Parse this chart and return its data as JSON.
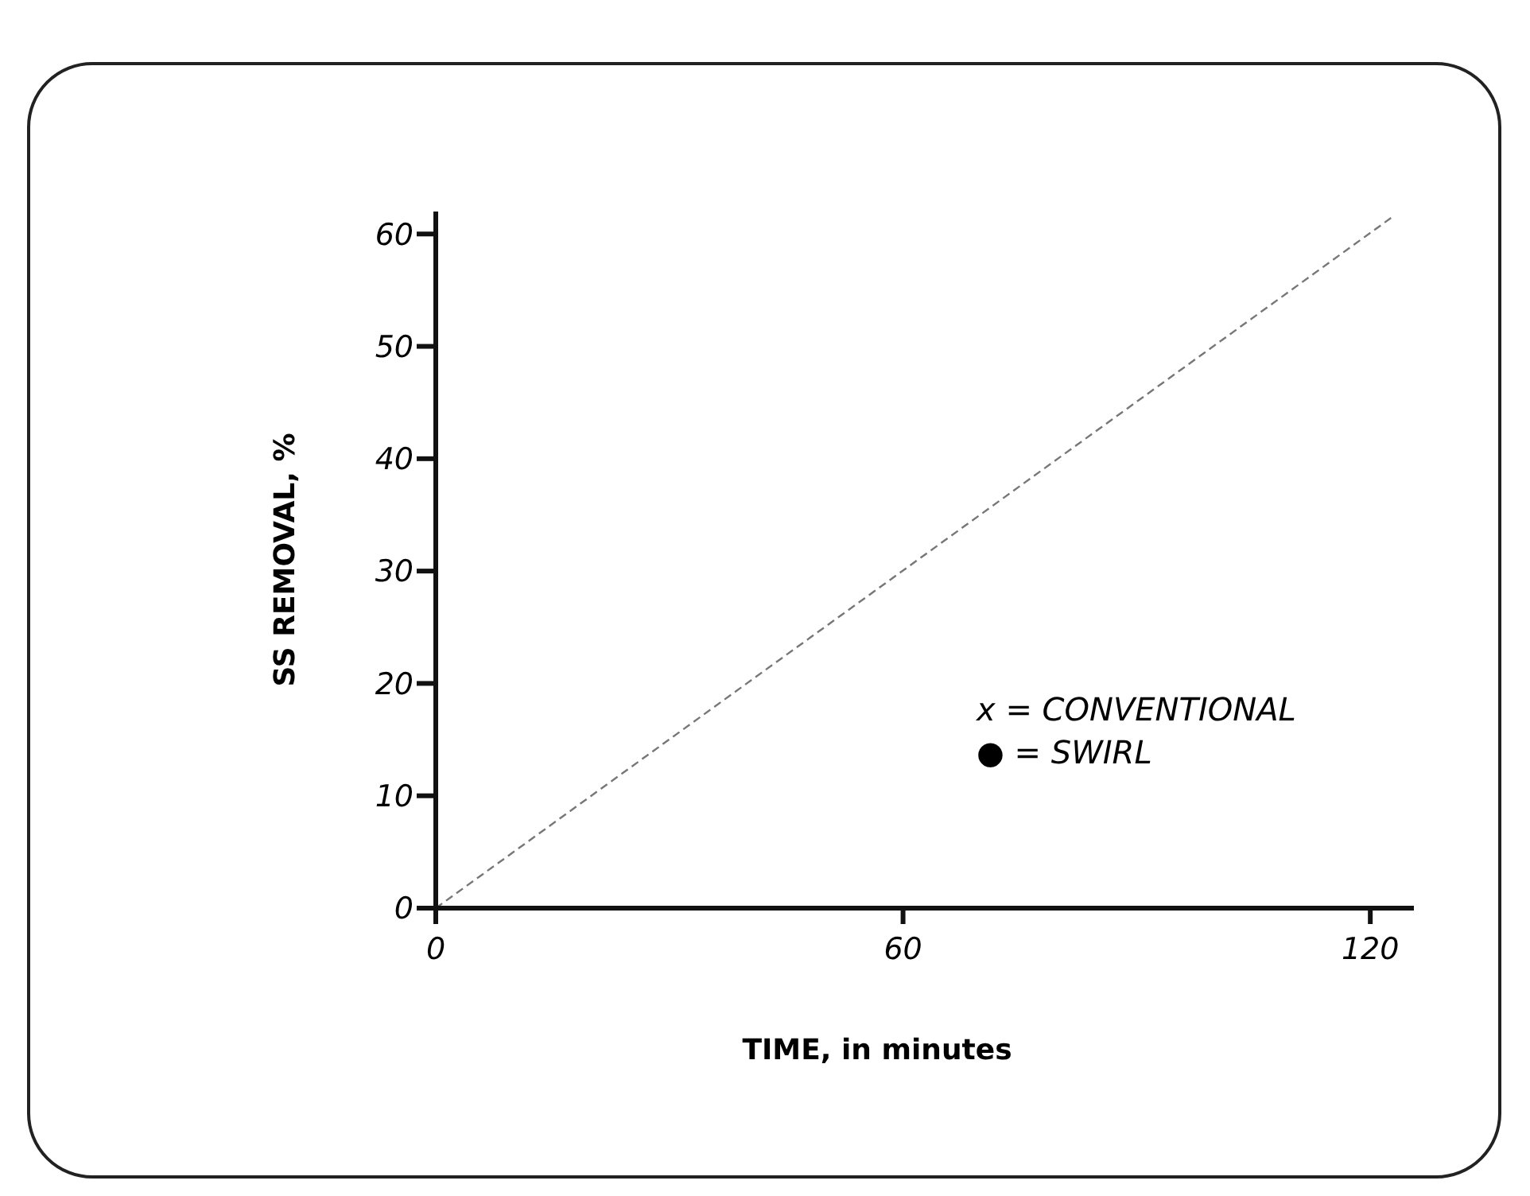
{
  "chart_data": {
    "type": "line",
    "xlabel": "TIME, in minutes",
    "ylabel": "SS REMOVAL, %",
    "series": [
      {
        "color": "#777777",
        "x": [
          0,
          123
        ],
        "values": [
          0,
          61.6
        ]
      }
    ],
    "xlim": [
      0,
      125.6
    ],
    "xticks": [
      0,
      60,
      120
    ],
    "ylim": [
      0,
      62
    ],
    "yticks": [
      0,
      10,
      20,
      30,
      40,
      50,
      60
    ],
    "line_style": "dashed",
    "marker": "none",
    "grid": false,
    "annotations": [
      "x = CONVENTIONAL",
      "● = SWIRL"
    ]
  }
}
